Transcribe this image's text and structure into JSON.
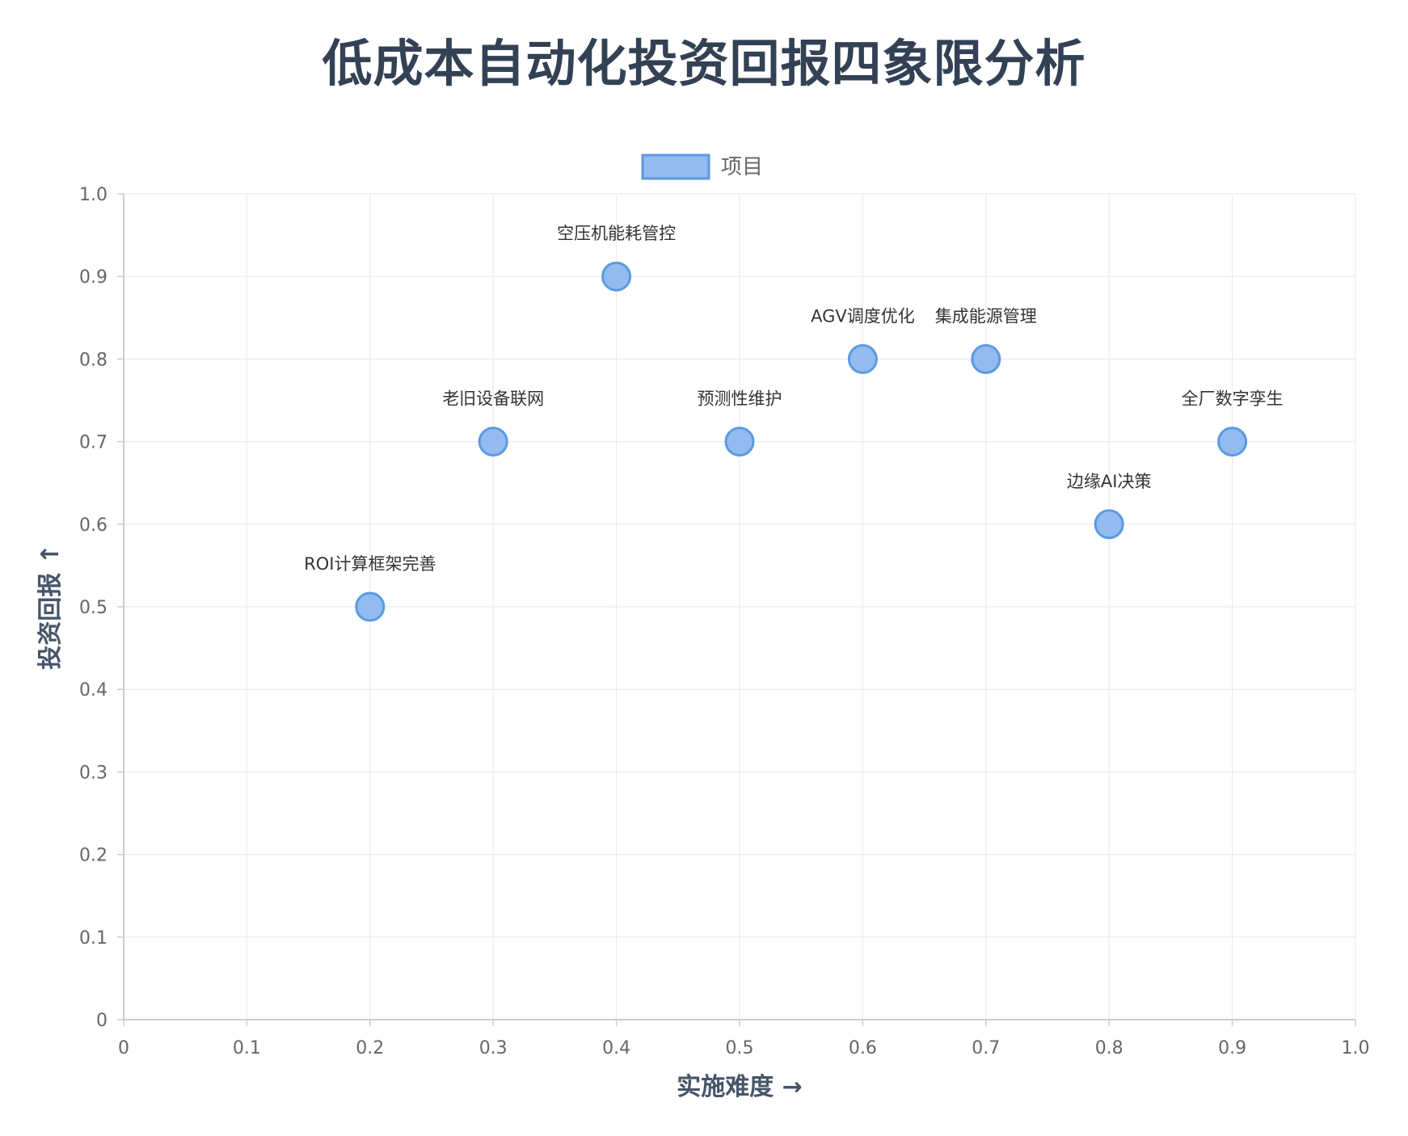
{
  "title": "低成本自动化投资回报四象限分析",
  "chart_data": {
    "type": "scatter",
    "title": "低成本自动化投资回报四象限分析",
    "xlabel": "实施难度 →",
    "ylabel": "投资回报 ↑",
    "xlim": [
      0,
      1.0
    ],
    "ylim": [
      0,
      1.0
    ],
    "x_ticks": [
      "0",
      "0.1",
      "0.2",
      "0.3",
      "0.4",
      "0.5",
      "0.6",
      "0.7",
      "0.8",
      "0.9",
      "1.0"
    ],
    "y_ticks": [
      "0",
      "0.1",
      "0.2",
      "0.3",
      "0.4",
      "0.5",
      "0.6",
      "0.7",
      "0.8",
      "0.9",
      "1.0"
    ],
    "grid": true,
    "legend": {
      "position": "top",
      "entries": [
        "项目"
      ]
    },
    "colors": {
      "point_fill": "#93bbef",
      "point_stroke": "#5a9ae0",
      "grid": "#ebebeb",
      "axis": "#cccccc"
    },
    "series": [
      {
        "name": "项目",
        "points": [
          {
            "label": "ROI计算框架完善",
            "x": 0.2,
            "y": 0.5
          },
          {
            "label": "老旧设备联网",
            "x": 0.3,
            "y": 0.7
          },
          {
            "label": "空压机能耗管控",
            "x": 0.4,
            "y": 0.9
          },
          {
            "label": "预测性维护",
            "x": 0.5,
            "y": 0.7
          },
          {
            "label": "AGV调度优化",
            "x": 0.6,
            "y": 0.8
          },
          {
            "label": "集成能源管理",
            "x": 0.7,
            "y": 0.8
          },
          {
            "label": "边缘AI决策",
            "x": 0.8,
            "y": 0.6
          },
          {
            "label": "全厂数字孪生",
            "x": 0.9,
            "y": 0.7
          }
        ]
      }
    ]
  }
}
